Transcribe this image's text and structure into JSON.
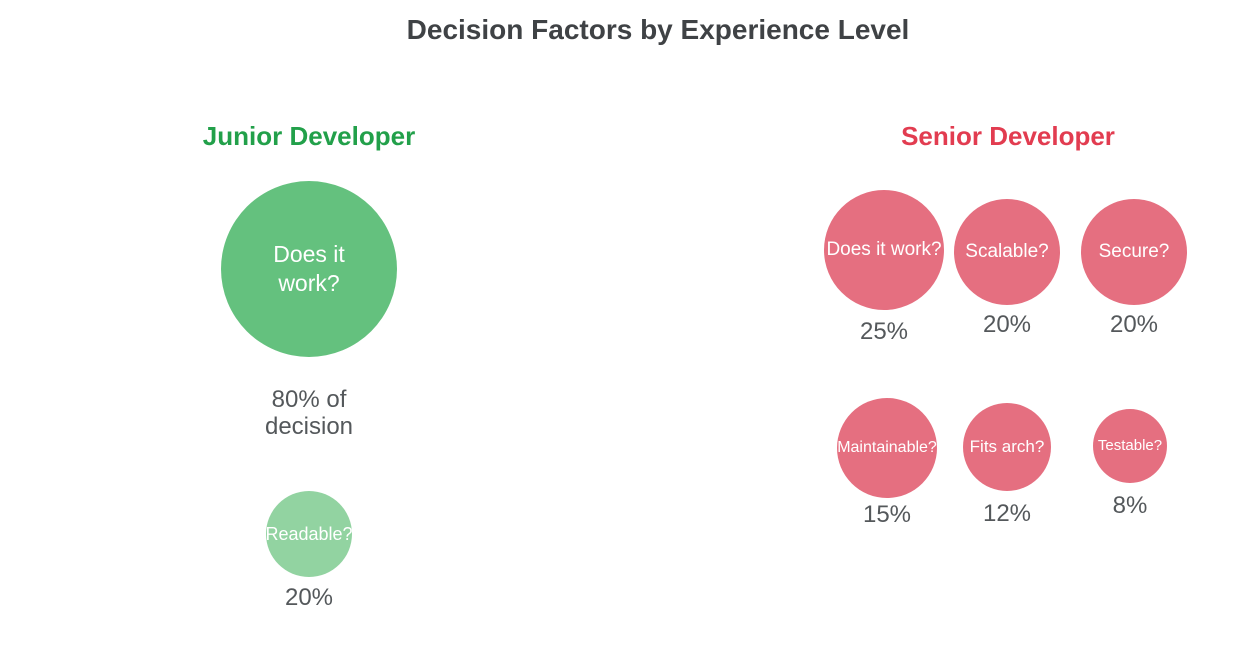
{
  "title": "Decision Factors by Experience Level",
  "colors": {
    "title_text": "#3f4245",
    "caption_text": "#54585b",
    "junior_heading": "#22a04a",
    "junior_bubble_main": "#64c17e",
    "junior_bubble_light": "#92d3a1",
    "senior_heading": "#e23c50",
    "senior_bubble": "#e56f80",
    "bubble_text": "#ffffff",
    "background": "#ffffff"
  },
  "junior": {
    "heading": "Junior Developer",
    "bubbles": [
      {
        "label": "Does it work?",
        "caption": "80% of decision",
        "percent": 80
      },
      {
        "label": "Readable?",
        "caption": "20%",
        "percent": 20
      }
    ]
  },
  "senior": {
    "heading": "Senior Developer",
    "bubbles": [
      {
        "label": "Does it work?",
        "caption": "25%",
        "percent": 25
      },
      {
        "label": "Scalable?",
        "caption": "20%",
        "percent": 20
      },
      {
        "label": "Secure?",
        "caption": "20%",
        "percent": 20
      },
      {
        "label": "Maintainable?",
        "caption": "15%",
        "percent": 15
      },
      {
        "label": "Fits arch?",
        "caption": "12%",
        "percent": 12
      },
      {
        "label": "Testable?",
        "caption": "8%",
        "percent": 8
      }
    ]
  },
  "chart_data": {
    "type": "bubble",
    "title": "Decision Factors by Experience Level",
    "encoding": "circle area proportional to percentage of decision weight",
    "legend_position": "none",
    "axes": "none",
    "grid": false,
    "groups": [
      {
        "name": "Junior Developer",
        "color": "#64c17e",
        "categories": [
          "Does it work?",
          "Readable?"
        ],
        "values": [
          80,
          20
        ]
      },
      {
        "name": "Senior Developer",
        "color": "#e56f80",
        "categories": [
          "Does it work?",
          "Scalable?",
          "Secure?",
          "Maintainable?",
          "Fits arch?",
          "Testable?"
        ],
        "values": [
          25,
          20,
          20,
          15,
          12,
          8
        ]
      }
    ]
  }
}
